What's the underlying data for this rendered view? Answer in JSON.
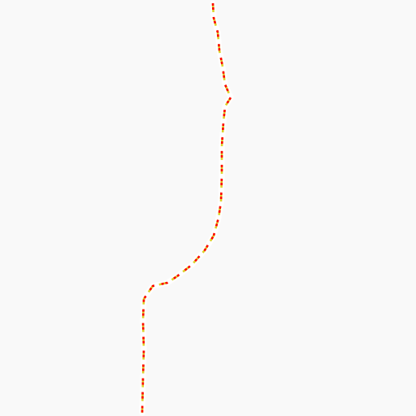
{
  "map": {
    "background_color": "#f9f9f9",
    "boundary": {
      "kind": "dashed-boundary-line",
      "halo_color": "#ffffff",
      "dash_color": "#ff0000",
      "gap_color": "#d6c800"
    }
  }
}
